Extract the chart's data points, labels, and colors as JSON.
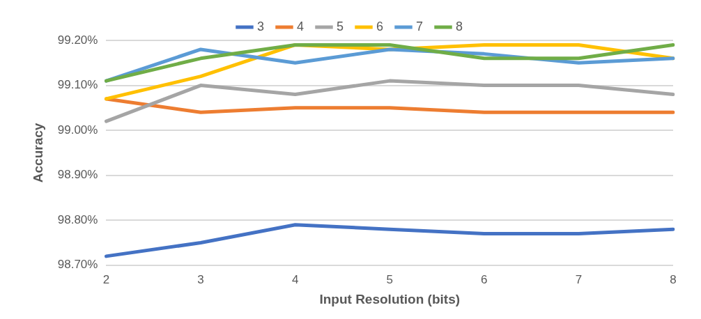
{
  "chart_data": {
    "type": "line",
    "xlabel": "Input Resolution (bits)",
    "ylabel": "Accuracy",
    "categories": [
      "2",
      "3",
      "4",
      "5",
      "6",
      "7",
      "8"
    ],
    "series": [
      {
        "name": "3",
        "color": "#4472c4",
        "values": [
          98.72,
          98.75,
          98.79,
          98.78,
          98.77,
          98.77,
          98.78
        ]
      },
      {
        "name": "4",
        "color": "#ed7d31",
        "values": [
          99.07,
          99.04,
          99.05,
          99.05,
          99.04,
          99.04,
          99.04
        ]
      },
      {
        "name": "5",
        "color": "#a5a5a5",
        "values": [
          99.02,
          99.1,
          99.08,
          99.11,
          99.1,
          99.1,
          99.08
        ]
      },
      {
        "name": "6",
        "color": "#ffc000",
        "values": [
          99.07,
          99.12,
          99.19,
          99.18,
          99.19,
          99.19,
          99.16
        ]
      },
      {
        "name": "7",
        "color": "#5b9bd5",
        "values": [
          99.11,
          99.18,
          99.15,
          99.18,
          99.17,
          99.15,
          99.16
        ]
      },
      {
        "name": "8",
        "color": "#70ad47",
        "values": [
          99.11,
          99.16,
          99.19,
          99.19,
          99.16,
          99.16,
          99.19
        ]
      }
    ],
    "ylim": [
      98.7,
      99.2
    ],
    "yticks": [
      {
        "value": 98.7,
        "label": "98.70%"
      },
      {
        "value": 98.8,
        "label": "98.80%"
      },
      {
        "value": 98.9,
        "label": "98.90%"
      },
      {
        "value": 99.0,
        "label": "99.00%"
      },
      {
        "value": 99.1,
        "label": "99.10%"
      },
      {
        "value": 99.2,
        "label": "99.20%"
      }
    ],
    "grid": "y",
    "legend": "top",
    "marker": "none",
    "line_style": "solid"
  }
}
